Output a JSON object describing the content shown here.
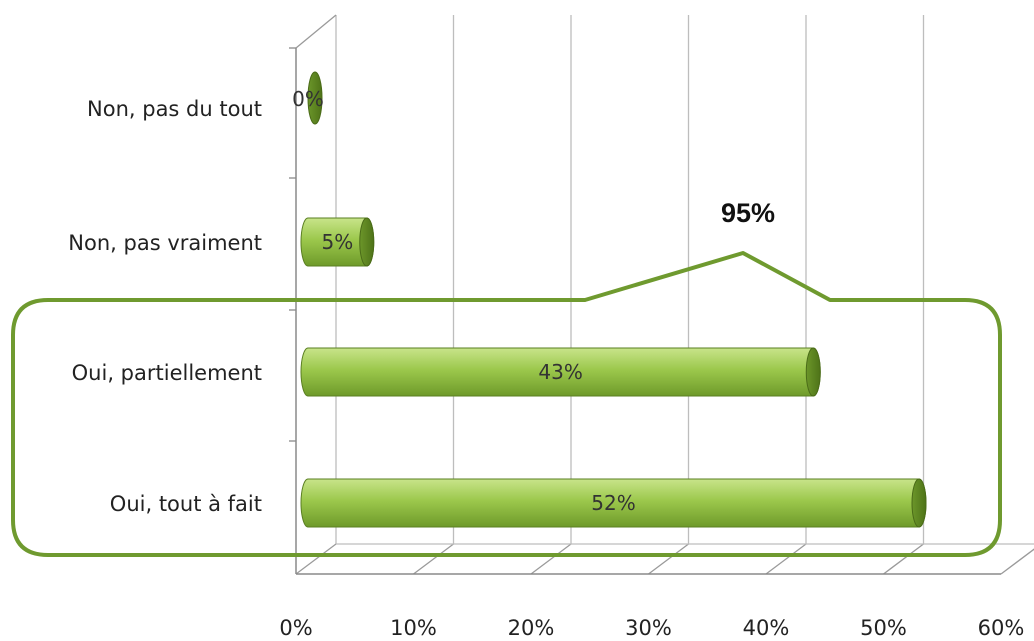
{
  "chart_data": {
    "type": "bar",
    "orientation": "horizontal",
    "style": "3d-cylinder",
    "categories": [
      "Non, pas du tout",
      "Non, pas vraiment",
      "Oui, partiellement",
      "Oui, tout à fait"
    ],
    "values": [
      0,
      5,
      43,
      52
    ],
    "data_labels": [
      "0%",
      "5%",
      "43%",
      "52%"
    ],
    "xlim": [
      0,
      60
    ],
    "x_ticks": [
      0,
      10,
      20,
      30,
      40,
      50,
      60
    ],
    "x_tick_labels": [
      "0%",
      "10%",
      "20%",
      "30%",
      "40%",
      "50%",
      "60%"
    ],
    "grid": true,
    "legend": "none",
    "title": "",
    "xlabel": "",
    "ylabel": "",
    "bar_color": "#8DBB3C",
    "annotation": {
      "text": "95%",
      "groups": [
        "Oui, partiellement",
        "Oui, tout à fait"
      ],
      "shape": "rounded-bracket",
      "color": "#6F9A2F"
    }
  }
}
